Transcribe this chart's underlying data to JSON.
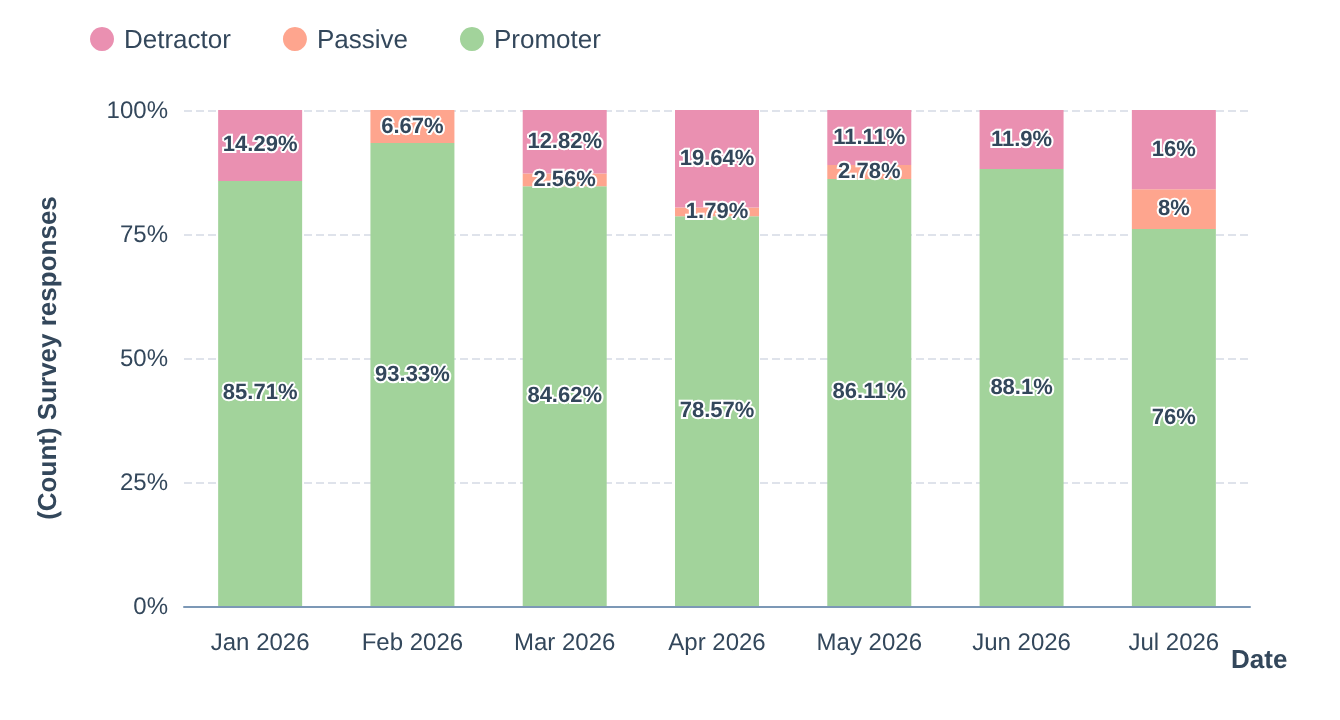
{
  "chart_data": {
    "type": "bar",
    "stacked": true,
    "xlabel": "Date",
    "ylabel": "(Count) Survey responses",
    "categories": [
      "Jan 2026",
      "Feb 2026",
      "Mar 2026",
      "Apr 2026",
      "May 2026",
      "Jun 2026",
      "Jul 2026"
    ],
    "series": [
      {
        "name": "Promoter",
        "color": "#a2d39b",
        "values": [
          85.71,
          93.33,
          84.62,
          78.57,
          86.11,
          88.1,
          76
        ],
        "value_labels": [
          "85.71%",
          "93.33%",
          "84.62%",
          "78.57%",
          "86.11%",
          "88.1%",
          "76%"
        ]
      },
      {
        "name": "Passive",
        "color": "#fea58e",
        "values": [
          0,
          6.67,
          2.56,
          1.79,
          2.78,
          0,
          8
        ],
        "value_labels": [
          null,
          "6.67%",
          "2.56%",
          "1.79%",
          "2.78%",
          null,
          "8%"
        ]
      },
      {
        "name": "Detractor",
        "color": "#ea90b1",
        "values": [
          14.29,
          0,
          12.82,
          19.64,
          11.11,
          11.9,
          16
        ],
        "value_labels": [
          "14.29%",
          null,
          "12.82%",
          "19.64%",
          "11.11%",
          "11.9%",
          "16%"
        ]
      }
    ],
    "ylim": [
      0,
      100
    ],
    "yticks": [
      {
        "value": 0,
        "label": "0%"
      },
      {
        "value": 25,
        "label": "25%"
      },
      {
        "value": 50,
        "label": "50%"
      },
      {
        "value": 75,
        "label": "75%"
      },
      {
        "value": 100,
        "label": "100%"
      }
    ],
    "grid": "y",
    "legend": "top left"
  }
}
